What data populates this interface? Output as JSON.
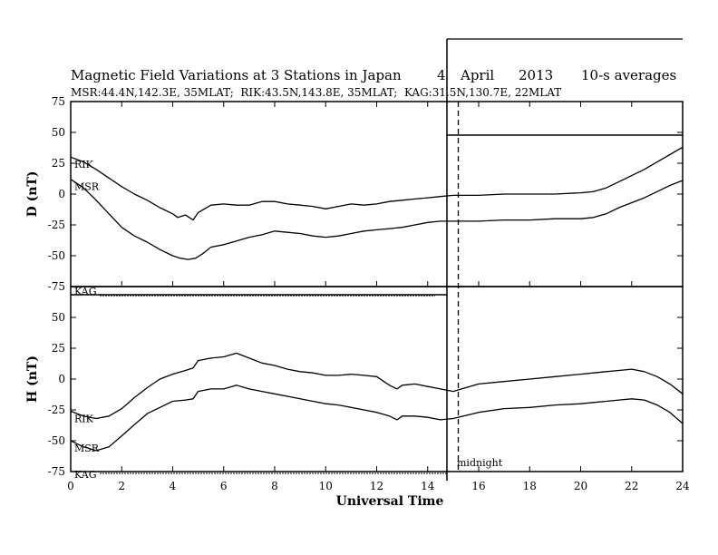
{
  "chart_data": {
    "type": "line",
    "title": "Magnetic Field Variations at 3 Stations in Japan",
    "date": {
      "day": "4",
      "month": "April",
      "year": "2013"
    },
    "averaging": "10-s averages",
    "stations_line": "MSR:44.4N,142.3E, 35MLAT;  RIK:43.5N,143.8E, 35MLAT;  KAG:31.5N,130.7E, 22MLAT",
    "xlabel": "Universal Time",
    "xlim": [
      0,
      24
    ],
    "x_ticks": [
      "0",
      "2",
      "4",
      "6",
      "8",
      "10",
      "12",
      "14",
      "16",
      "18",
      "20",
      "22",
      "24"
    ],
    "midnight_label": "midnight",
    "midnight_x": 15.2,
    "panels": [
      {
        "ylabel": "D (nT)",
        "ylim": [
          -75,
          75
        ],
        "y_ticks": [
          "75",
          "50",
          "25",
          "0",
          "-25",
          "-50",
          "-75"
        ],
        "series": [
          {
            "name": "RIK",
            "x": [
              0,
              0.5,
              1,
              1.5,
              2,
              2.5,
              3,
              3.5,
              4,
              4.2,
              4.5,
              4.8,
              5,
              5.5,
              6,
              6.5,
              7,
              7.5,
              8,
              8.5,
              9,
              9.5,
              10,
              10.5,
              11,
              11.5,
              12,
              12.5,
              13,
              13.5,
              14,
              14.5,
              15,
              16,
              17,
              18,
              19,
              20,
              20.5,
              21,
              21.5,
              22,
              22.5,
              23,
              23.5,
              24
            ],
            "y": [
              30,
              26,
              20,
              13,
              6,
              0,
              -5,
              -11,
              -16,
              -19,
              -17,
              -21,
              -15,
              -9,
              -8,
              -9,
              -9,
              -6,
              -6,
              -8,
              -9,
              -10,
              -12,
              -10,
              -8,
              -9,
              -8,
              -6,
              -5,
              -4,
              -3,
              -2,
              -1,
              -1,
              0,
              0,
              0,
              1,
              2,
              5,
              10,
              15,
              20,
              26,
              32,
              38
            ]
          },
          {
            "name": "MSR",
            "x": [
              0,
              0.5,
              1,
              1.5,
              2,
              2.5,
              3,
              3.5,
              4,
              4.3,
              4.6,
              4.9,
              5.2,
              5.5,
              6,
              6.5,
              7,
              7.5,
              8,
              8.5,
              9,
              9.5,
              10,
              10.5,
              11,
              11.5,
              12,
              12.5,
              13,
              13.5,
              14,
              14.5,
              15,
              16,
              17,
              18,
              19,
              20,
              20.5,
              21,
              21.5,
              22,
              22.5,
              23,
              23.5,
              24
            ],
            "y": [
              12,
              5,
              -5,
              -16,
              -27,
              -34,
              -39,
              -45,
              -50,
              -52,
              -53,
              -52,
              -48,
              -43,
              -41,
              -38,
              -35,
              -33,
              -30,
              -31,
              -32,
              -34,
              -35,
              -34,
              -32,
              -30,
              -29,
              -28,
              -27,
              -25,
              -23,
              -22,
              -22,
              -22,
              -21,
              -21,
              -20,
              -20,
              -19,
              -16,
              -11,
              -7,
              -3,
              2,
              7,
              11
            ]
          }
        ]
      },
      {
        "ylabel": "H (nT)",
        "ylim": [
          -75,
          75
        ],
        "y_ticks": [
          "75",
          "50",
          "25",
          "0",
          "-25",
          "-50",
          "-75"
        ],
        "series": [
          {
            "name": "RIK",
            "x": [
              0,
              0.5,
              1,
              1.5,
              2,
              2.5,
              3,
              3.5,
              4,
              4.5,
              4.8,
              5,
              5.5,
              6,
              6.5,
              7,
              7.5,
              8,
              8.5,
              9,
              9.5,
              10,
              10.5,
              11,
              11.5,
              12,
              12.5,
              12.8,
              13,
              13.5,
              14,
              14.5,
              15,
              16,
              17,
              18,
              19,
              20,
              20.5,
              21,
              21.5,
              22,
              22.5,
              23,
              23.5,
              24
            ],
            "y": [
              -26,
              -30,
              -32,
              -30,
              -24,
              -15,
              -7,
              0,
              4,
              7,
              9,
              15,
              17,
              18,
              21,
              17,
              13,
              11,
              8,
              6,
              5,
              3,
              3,
              4,
              3,
              2,
              -5,
              -8,
              -5,
              -4,
              -6,
              -8,
              -10,
              -4,
              -2,
              0,
              2,
              4,
              5,
              6,
              7,
              8,
              6,
              2,
              -4,
              -12
            ]
          },
          {
            "name": "MSR",
            "x": [
              0,
              0.5,
              1,
              1.5,
              2,
              2.5,
              3,
              3.5,
              4,
              4.5,
              4.8,
              5,
              5.5,
              6,
              6.5,
              7,
              7.5,
              8,
              8.5,
              9,
              9.5,
              10,
              10.5,
              11,
              11.5,
              12,
              12.5,
              12.8,
              13,
              13.5,
              14,
              14.5,
              15,
              16,
              17,
              18,
              19,
              20,
              20.5,
              21,
              21.5,
              22,
              22.5,
              23,
              23.5,
              24
            ],
            "y": [
              -50,
              -55,
              -58,
              -55,
              -46,
              -37,
              -28,
              -23,
              -18,
              -17,
              -16,
              -10,
              -8,
              -8,
              -5,
              -8,
              -10,
              -12,
              -14,
              -16,
              -18,
              -20,
              -21,
              -23,
              -25,
              -27,
              -30,
              -33,
              -30,
              -30,
              -31,
              -33,
              -32,
              -27,
              -24,
              -23,
              -21,
              -20,
              -19,
              -18,
              -17,
              -16,
              -17,
              -21,
              -27,
              -36
            ]
          }
        ]
      }
    ],
    "kag_label": "KAG"
  }
}
